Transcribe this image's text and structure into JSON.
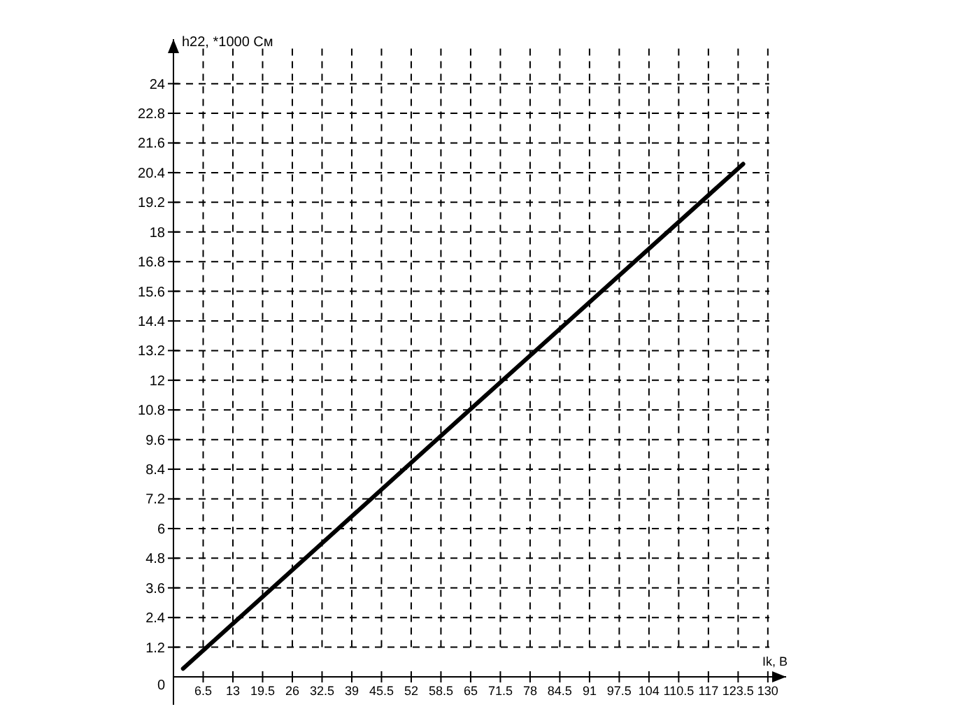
{
  "chart_data": {
    "type": "line",
    "xlabel": "Ik, В",
    "ylabel": "h22, *1000 См",
    "xlim": [
      0,
      134
    ],
    "ylim": [
      0,
      25.8
    ],
    "xticks": [
      6.5,
      13,
      19.5,
      26,
      32.5,
      39,
      45.5,
      52,
      58.5,
      65,
      71.5,
      78,
      84.5,
      91,
      97.5,
      104,
      110.5,
      117,
      123.5,
      130
    ],
    "yticks": [
      0,
      1.2,
      2.4,
      3.6,
      4.8,
      6,
      7.2,
      8.4,
      9.6,
      10.8,
      12,
      13.2,
      14.4,
      15.6,
      16.8,
      18,
      19.2,
      20.4,
      21.6,
      22.8,
      24
    ],
    "grid": true,
    "line_style": "solid",
    "marker": "none",
    "series": [
      {
        "color": "#000000",
        "x": [
          2.1,
          63,
          124.6
        ],
        "values": [
          0.33,
          10.5,
          20.75
        ]
      }
    ]
  }
}
